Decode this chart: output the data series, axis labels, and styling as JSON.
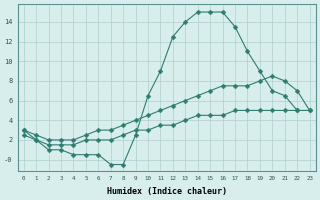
{
  "line1_x": [
    0,
    1,
    2,
    3,
    4,
    5,
    6,
    7,
    8,
    9,
    10,
    11,
    12,
    13,
    14,
    15,
    16,
    17,
    18,
    19,
    20,
    21,
    22
  ],
  "line1_y": [
    3,
    2,
    1,
    1,
    0.5,
    0.5,
    0.5,
    -0.5,
    -0.5,
    2.5,
    6.5,
    9,
    12.5,
    14,
    15,
    15,
    15,
    13.5,
    11,
    9,
    7,
    6.5,
    5
  ],
  "line2_x": [
    0,
    1,
    2,
    3,
    4,
    5,
    6,
    7,
    8,
    9,
    10,
    11,
    12,
    13,
    14,
    15,
    16,
    17,
    18,
    19,
    20,
    21,
    22,
    23
  ],
  "line2_y": [
    3,
    2.5,
    2,
    2,
    2,
    2.5,
    3,
    3,
    3.5,
    4,
    4.5,
    5,
    5.5,
    6,
    6.5,
    7,
    7.5,
    7.5,
    7.5,
    8,
    8.5,
    8,
    7,
    5
  ],
  "line3_x": [
    0,
    1,
    2,
    3,
    4,
    5,
    6,
    7,
    8,
    9,
    10,
    11,
    12,
    13,
    14,
    15,
    16,
    17,
    18,
    19,
    20,
    21,
    22,
    23
  ],
  "line3_y": [
    2.5,
    2,
    1.5,
    1.5,
    1.5,
    2,
    2,
    2,
    2.5,
    3,
    3,
    3.5,
    3.5,
    4,
    4.5,
    4.5,
    4.5,
    5,
    5,
    5,
    5,
    5,
    5,
    5
  ],
  "line_color": "#2e7d6e",
  "bg_color": "#d8eeed",
  "grid_color": "#b0cece",
  "xlabel": "Humidex (Indice chaleur)",
  "xlim": [
    -0.5,
    23.5
  ],
  "ylim": [
    -1.2,
    15.8
  ],
  "ytick_labels": [
    "-0",
    "2",
    "4",
    "6",
    "8",
    "10",
    "12",
    "14"
  ],
  "ytick_vals": [
    0,
    2,
    4,
    6,
    8,
    10,
    12,
    14
  ],
  "xticks": [
    0,
    1,
    2,
    3,
    4,
    5,
    6,
    7,
    8,
    9,
    10,
    11,
    12,
    13,
    14,
    15,
    16,
    17,
    18,
    19,
    20,
    21,
    22,
    23
  ]
}
